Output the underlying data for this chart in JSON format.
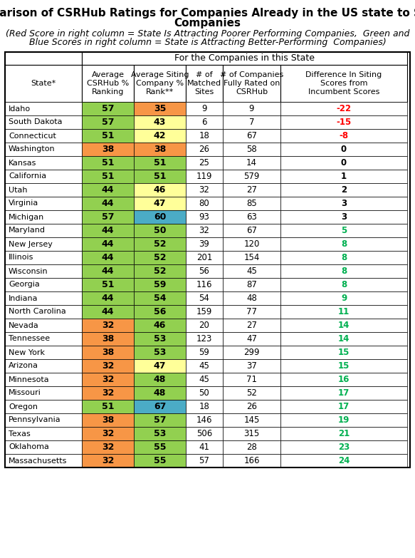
{
  "title_line1": "Comparison of CSRHub Ratings for Companies Already in the US state to Siting",
  "title_line2": "Companies",
  "subtitle_line1": "(Red Score in right column = State Is Attracting Poorer Performing Companies,  Green and",
  "subtitle_line2": "Blue Scores in right column = State is Attracting Better-Performing  Companies)",
  "header_group": "For the Companies in this State",
  "col_headers": [
    "State*",
    "Average\nCSRHub %\nRanking",
    "Average Siting\nCompany %\nRank**",
    "# of\nMatched\nSites",
    "# of Companies\nFully Rated on\nCSRHub",
    "Difference In Siting\nScores from\nIncumbent Scores"
  ],
  "rows": [
    {
      "state": "Idaho",
      "avg": 57,
      "siting": 35,
      "matched": 9,
      "fully": 9,
      "diff": -22
    },
    {
      "state": "South Dakota",
      "avg": 57,
      "siting": 43,
      "matched": 6,
      "fully": 7,
      "diff": -15
    },
    {
      "state": "Connecticut",
      "avg": 51,
      "siting": 42,
      "matched": 18,
      "fully": 67,
      "diff": -8
    },
    {
      "state": "Washington",
      "avg": 38,
      "siting": 38,
      "matched": 26,
      "fully": 58,
      "diff": 0
    },
    {
      "state": "Kansas",
      "avg": 51,
      "siting": 51,
      "matched": 25,
      "fully": 14,
      "diff": 0
    },
    {
      "state": "California",
      "avg": 51,
      "siting": 51,
      "matched": 119,
      "fully": 579,
      "diff": 1
    },
    {
      "state": "Utah",
      "avg": 44,
      "siting": 46,
      "matched": 32,
      "fully": 27,
      "diff": 2
    },
    {
      "state": "Virginia",
      "avg": 44,
      "siting": 47,
      "matched": 80,
      "fully": 85,
      "diff": 3
    },
    {
      "state": "Michigan",
      "avg": 57,
      "siting": 60,
      "matched": 93,
      "fully": 63,
      "diff": 3
    },
    {
      "state": "Maryland",
      "avg": 44,
      "siting": 50,
      "matched": 32,
      "fully": 67,
      "diff": 5
    },
    {
      "state": "New Jersey",
      "avg": 44,
      "siting": 52,
      "matched": 39,
      "fully": 120,
      "diff": 8
    },
    {
      "state": "Illinois",
      "avg": 44,
      "siting": 52,
      "matched": 201,
      "fully": 154,
      "diff": 8
    },
    {
      "state": "Wisconsin",
      "avg": 44,
      "siting": 52,
      "matched": 56,
      "fully": 45,
      "diff": 8
    },
    {
      "state": "Georgia",
      "avg": 51,
      "siting": 59,
      "matched": 116,
      "fully": 87,
      "diff": 8
    },
    {
      "state": "Indiana",
      "avg": 44,
      "siting": 54,
      "matched": 54,
      "fully": 48,
      "diff": 9
    },
    {
      "state": "North Carolina",
      "avg": 44,
      "siting": 56,
      "matched": 159,
      "fully": 77,
      "diff": 11
    },
    {
      "state": "Nevada",
      "avg": 32,
      "siting": 46,
      "matched": 20,
      "fully": 27,
      "diff": 14
    },
    {
      "state": "Tennessee",
      "avg": 38,
      "siting": 53,
      "matched": 123,
      "fully": 47,
      "diff": 14
    },
    {
      "state": "New York",
      "avg": 38,
      "siting": 53,
      "matched": 59,
      "fully": 299,
      "diff": 15
    },
    {
      "state": "Arizona",
      "avg": 32,
      "siting": 47,
      "matched": 45,
      "fully": 37,
      "diff": 15
    },
    {
      "state": "Minnesota",
      "avg": 32,
      "siting": 48,
      "matched": 45,
      "fully": 71,
      "diff": 16
    },
    {
      "state": "Missouri",
      "avg": 32,
      "siting": 48,
      "matched": 50,
      "fully": 52,
      "diff": 17
    },
    {
      "state": "Oregon",
      "avg": 51,
      "siting": 67,
      "matched": 18,
      "fully": 26,
      "diff": 17
    },
    {
      "state": "Pennsylvania",
      "avg": 38,
      "siting": 57,
      "matched": 146,
      "fully": 145,
      "diff": 19
    },
    {
      "state": "Texas",
      "avg": 32,
      "siting": 53,
      "matched": 506,
      "fully": 315,
      "diff": 21
    },
    {
      "state": "Oklahoma",
      "avg": 32,
      "siting": 55,
      "matched": 41,
      "fully": 28,
      "diff": 23
    },
    {
      "state": "Massachusetts",
      "avg": 32,
      "siting": 55,
      "matched": 57,
      "fully": 166,
      "diff": 24
    }
  ],
  "avg_color_map": {
    "32": "#f79646",
    "38": "#f79646",
    "44": "#92d050",
    "51": "#92d050",
    "57": "#92d050"
  },
  "special_siting_colors": {
    "Idaho": "#f79646",
    "South Dakota": "#ffff99",
    "Connecticut": "#ffff99",
    "Washington": "#f79646",
    "Kansas": "#92d050",
    "California": "#92d050",
    "Utah": "#ffff99",
    "Virginia": "#ffff99",
    "Michigan": "#4bacc6",
    "Maryland": "#92d050",
    "New Jersey": "#92d050",
    "Illinois": "#92d050",
    "Wisconsin": "#92d050",
    "Georgia": "#92d050",
    "Indiana": "#92d050",
    "North Carolina": "#92d050",
    "Nevada": "#92d050",
    "Tennessee": "#92d050",
    "New York": "#92d050",
    "Arizona": "#ffff99",
    "Minnesota": "#92d050",
    "Missouri": "#92d050",
    "Oregon": "#4bacc6",
    "Pennsylvania": "#92d050",
    "Texas": "#92d050",
    "Oklahoma": "#92d050",
    "Massachusetts": "#92d050"
  },
  "diff_neg_color": "#ff0000",
  "diff_zero_color": "#000000",
  "diff_green_color": "#00b050",
  "background_color": "#ffffff",
  "title_fontsize": 11,
  "subtitle_fontsize": 9,
  "header_fontsize": 8,
  "cell_fontsize": 8.5,
  "colored_cell_fontsize": 9
}
